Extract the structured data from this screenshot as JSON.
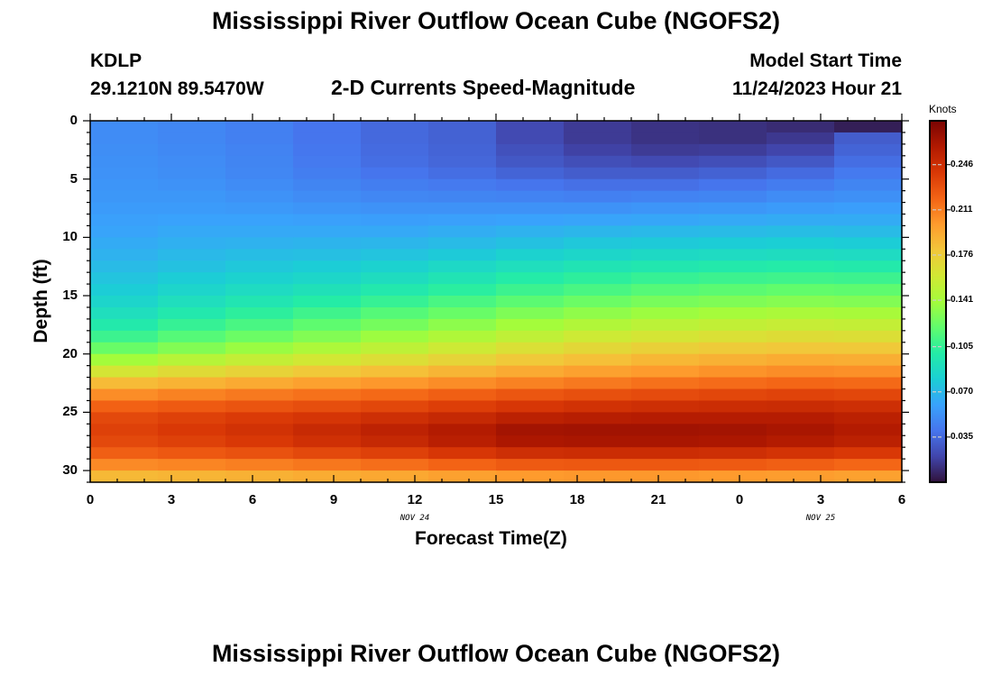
{
  "page": {
    "title": "Mississippi River Outflow Ocean Cube (NGOFS2)",
    "station_id": "KDLP",
    "station_coords": "29.1210N  89.5470W",
    "subtitle": "2-D Currents Speed-Magnitude",
    "model_start_label": "Model Start Time",
    "model_start_value": "11/24/2023 Hour 21",
    "footer_title": "Mississippi River Outflow Ocean Cube (NGOFS2)"
  },
  "chart_data": {
    "type": "heatmap",
    "title": "2-D Currents Speed-Magnitude",
    "xlabel": "Forecast Time(Z)",
    "ylabel": "Depth (ft)",
    "x_tick_labels": [
      "0",
      "3",
      "6",
      "9",
      "12",
      "15",
      "18",
      "21",
      "0",
      "3",
      "6"
    ],
    "date_labels": [
      {
        "text": "NOV 24",
        "at_hour": 12
      },
      {
        "text": "NOV 25",
        "at_hour": 27
      }
    ],
    "xlim_hours": [
      0,
      30
    ],
    "y_tick_labels": [
      "0",
      "5",
      "10",
      "15",
      "20",
      "25",
      "30"
    ],
    "ylim_ft": [
      0,
      31
    ],
    "y_inverted": true,
    "colorbar": {
      "title": "Knots",
      "tick_labels": [
        "0.246",
        "0.211",
        "0.176",
        "0.141",
        "0.105",
        "0.070",
        "0.035"
      ],
      "range": [
        0.0,
        0.28
      ],
      "colormap": [
        "#30123b",
        "#4145ab",
        "#4675ed",
        "#39a2fc",
        "#1bcfd4",
        "#24eca6",
        "#61fc6c",
        "#a4fc3b",
        "#d1e834",
        "#f3c63a",
        "#fe9b2d",
        "#f36315",
        "#d93806",
        "#b11901",
        "#7a0403"
      ]
    },
    "time_hours": [
      0,
      2.5,
      5,
      7.5,
      10,
      12.5,
      15,
      17.5,
      20,
      22.5,
      25,
      27.5
    ],
    "depth_ft": [
      0.5,
      1.5,
      2.5,
      3.5,
      4.5,
      5.5,
      6.5,
      7.5,
      8.5,
      9.5,
      10.5,
      11.5,
      12.5,
      13.5,
      14.5,
      15.5,
      16.5,
      17.5,
      18.5,
      19.5,
      20.5,
      21.5,
      22.5,
      23.5,
      24.5,
      25.5,
      26.5,
      27.5,
      28.5,
      29.5,
      30.5
    ],
    "speed_knots": [
      [
        0.05,
        0.048,
        0.045,
        0.04,
        0.035,
        0.032,
        0.022,
        0.016,
        0.013,
        0.012,
        0.01,
        0.005
      ],
      [
        0.05,
        0.048,
        0.045,
        0.04,
        0.035,
        0.032,
        0.022,
        0.016,
        0.013,
        0.012,
        0.015,
        0.03
      ],
      [
        0.051,
        0.049,
        0.046,
        0.041,
        0.036,
        0.033,
        0.025,
        0.019,
        0.016,
        0.017,
        0.02,
        0.033
      ],
      [
        0.052,
        0.05,
        0.047,
        0.042,
        0.037,
        0.034,
        0.028,
        0.024,
        0.022,
        0.024,
        0.028,
        0.037
      ],
      [
        0.053,
        0.051,
        0.048,
        0.044,
        0.04,
        0.037,
        0.033,
        0.03,
        0.03,
        0.032,
        0.036,
        0.042
      ],
      [
        0.054,
        0.053,
        0.05,
        0.047,
        0.044,
        0.042,
        0.04,
        0.038,
        0.038,
        0.04,
        0.043,
        0.047
      ],
      [
        0.055,
        0.055,
        0.053,
        0.05,
        0.048,
        0.047,
        0.046,
        0.045,
        0.046,
        0.047,
        0.05,
        0.052
      ],
      [
        0.057,
        0.057,
        0.056,
        0.054,
        0.053,
        0.053,
        0.053,
        0.053,
        0.054,
        0.055,
        0.057,
        0.058
      ],
      [
        0.059,
        0.06,
        0.06,
        0.059,
        0.058,
        0.059,
        0.06,
        0.061,
        0.062,
        0.063,
        0.064,
        0.064
      ],
      [
        0.061,
        0.063,
        0.063,
        0.063,
        0.063,
        0.065,
        0.067,
        0.069,
        0.07,
        0.071,
        0.072,
        0.071
      ],
      [
        0.064,
        0.066,
        0.067,
        0.068,
        0.069,
        0.071,
        0.074,
        0.077,
        0.078,
        0.079,
        0.08,
        0.079
      ],
      [
        0.067,
        0.07,
        0.072,
        0.073,
        0.075,
        0.078,
        0.082,
        0.085,
        0.087,
        0.088,
        0.089,
        0.088
      ],
      [
        0.071,
        0.074,
        0.077,
        0.079,
        0.082,
        0.086,
        0.09,
        0.094,
        0.096,
        0.098,
        0.099,
        0.098
      ],
      [
        0.075,
        0.079,
        0.082,
        0.085,
        0.089,
        0.094,
        0.099,
        0.103,
        0.106,
        0.108,
        0.109,
        0.108
      ],
      [
        0.079,
        0.084,
        0.088,
        0.092,
        0.097,
        0.102,
        0.108,
        0.112,
        0.116,
        0.118,
        0.12,
        0.119
      ],
      [
        0.084,
        0.09,
        0.095,
        0.1,
        0.106,
        0.112,
        0.118,
        0.123,
        0.127,
        0.129,
        0.131,
        0.13
      ],
      [
        0.09,
        0.097,
        0.103,
        0.109,
        0.116,
        0.122,
        0.129,
        0.134,
        0.138,
        0.141,
        0.143,
        0.142
      ],
      [
        0.098,
        0.106,
        0.112,
        0.119,
        0.126,
        0.133,
        0.14,
        0.146,
        0.15,
        0.153,
        0.155,
        0.154
      ],
      [
        0.108,
        0.116,
        0.123,
        0.13,
        0.138,
        0.145,
        0.152,
        0.158,
        0.162,
        0.165,
        0.167,
        0.166
      ],
      [
        0.122,
        0.13,
        0.137,
        0.144,
        0.151,
        0.158,
        0.165,
        0.17,
        0.174,
        0.177,
        0.179,
        0.178
      ],
      [
        0.14,
        0.148,
        0.154,
        0.16,
        0.166,
        0.172,
        0.178,
        0.183,
        0.187,
        0.19,
        0.192,
        0.191
      ],
      [
        0.162,
        0.168,
        0.173,
        0.178,
        0.183,
        0.188,
        0.193,
        0.197,
        0.2,
        0.203,
        0.205,
        0.204
      ],
      [
        0.185,
        0.189,
        0.193,
        0.197,
        0.201,
        0.205,
        0.209,
        0.212,
        0.215,
        0.217,
        0.219,
        0.218
      ],
      [
        0.205,
        0.209,
        0.212,
        0.215,
        0.218,
        0.222,
        0.226,
        0.229,
        0.231,
        0.233,
        0.235,
        0.233
      ],
      [
        0.221,
        0.224,
        0.227,
        0.23,
        0.233,
        0.237,
        0.241,
        0.244,
        0.246,
        0.247,
        0.248,
        0.246
      ],
      [
        0.232,
        0.236,
        0.239,
        0.242,
        0.246,
        0.25,
        0.255,
        0.257,
        0.258,
        0.258,
        0.258,
        0.255
      ],
      [
        0.236,
        0.24,
        0.244,
        0.249,
        0.254,
        0.259,
        0.265,
        0.266,
        0.266,
        0.265,
        0.263,
        0.259
      ],
      [
        0.232,
        0.236,
        0.24,
        0.245,
        0.25,
        0.256,
        0.262,
        0.263,
        0.263,
        0.262,
        0.259,
        0.255
      ],
      [
        0.222,
        0.225,
        0.228,
        0.232,
        0.236,
        0.241,
        0.246,
        0.247,
        0.247,
        0.246,
        0.243,
        0.24
      ],
      [
        0.206,
        0.208,
        0.21,
        0.213,
        0.216,
        0.22,
        0.224,
        0.225,
        0.225,
        0.224,
        0.222,
        0.219
      ],
      [
        0.186,
        0.188,
        0.19,
        0.192,
        0.194,
        0.197,
        0.2,
        0.201,
        0.201,
        0.2,
        0.199,
        0.197
      ]
    ]
  }
}
